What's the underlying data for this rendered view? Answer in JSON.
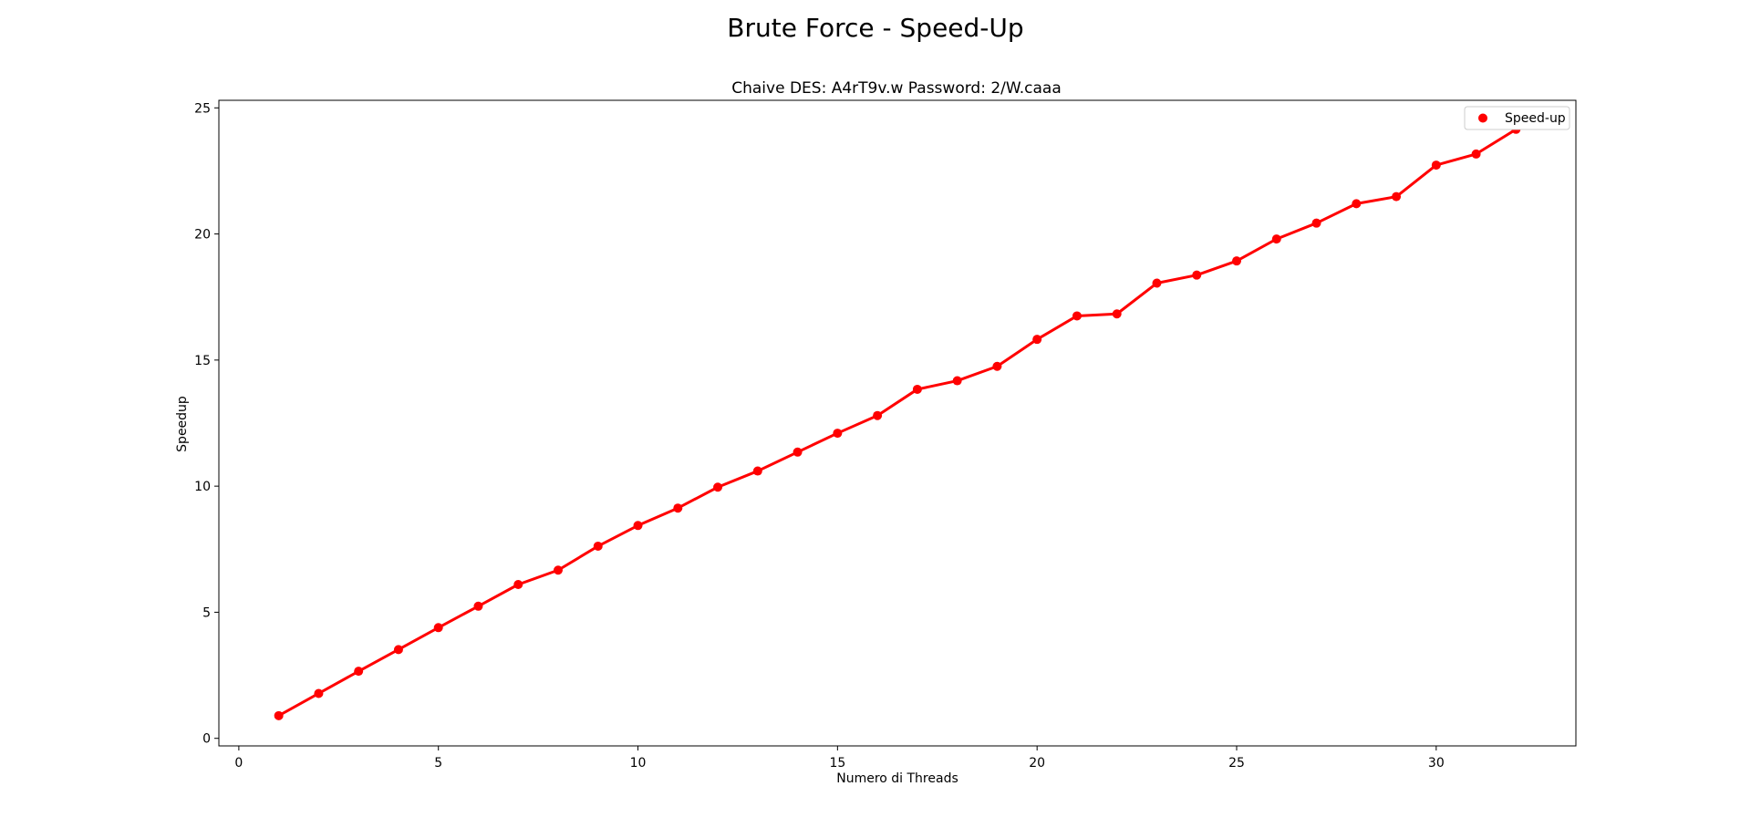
{
  "figure": {
    "suptitle": "Brute Force - Speed-Up"
  },
  "chart_data": {
    "type": "line",
    "title": "Chaive DES: A4rT9v.w Password: 2/W.caaa",
    "xlabel": "Numero di Threads",
    "ylabel": "Speedup",
    "xlim": [
      -0.5,
      33.5
    ],
    "ylim": [
      -0.3,
      25.3
    ],
    "xticks": [
      0,
      5,
      10,
      15,
      20,
      25,
      30
    ],
    "yticks": [
      0,
      5,
      10,
      15,
      20,
      25
    ],
    "grid": false,
    "legend_position": "top-right",
    "series": [
      {
        "name": "Speed-up",
        "color": "#ff0000",
        "marker": "circle",
        "x": [
          1,
          2,
          3,
          4,
          5,
          6,
          7,
          8,
          9,
          10,
          11,
          12,
          13,
          14,
          15,
          16,
          17,
          18,
          19,
          20,
          21,
          22,
          23,
          24,
          25,
          26,
          27,
          28,
          29,
          30,
          31,
          32
        ],
        "y": [
          0.9,
          1.78,
          2.66,
          3.52,
          4.39,
          5.24,
          6.1,
          6.67,
          7.62,
          8.44,
          9.13,
          9.96,
          10.6,
          11.35,
          12.1,
          12.8,
          13.84,
          14.18,
          14.75,
          15.82,
          16.75,
          16.83,
          18.05,
          18.37,
          18.93,
          19.8,
          20.43,
          21.2,
          21.48,
          22.73,
          23.17,
          24.15
        ]
      }
    ]
  }
}
